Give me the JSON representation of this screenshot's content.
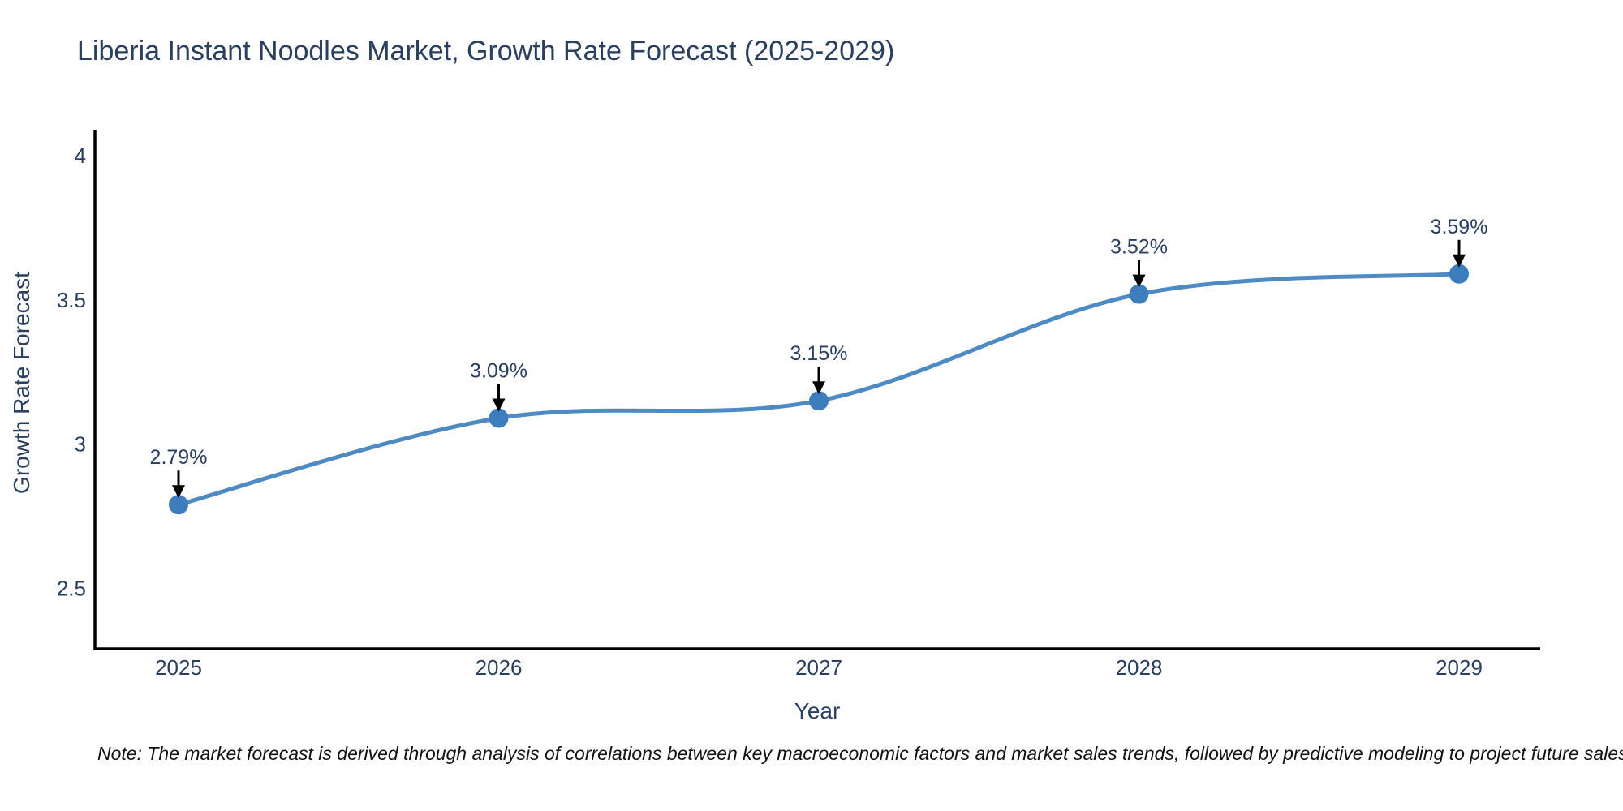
{
  "note": {
    "text": "Note: The market forecast is derived through analysis of correlations between key macroeconomic factors and market sales trends, followed by predictive modeling to project future sales"
  },
  "colors": {
    "line": "#4e8ac4",
    "marker": "#3d7dbd",
    "axis": "#000000",
    "text": "#2a3f5f",
    "annotation_text": "#2a3f5f",
    "annotation_arrow": "#000000",
    "note_text": "#111111",
    "background": "#ffffff"
  },
  "chart_data": {
    "type": "line",
    "title": "Liberia Instant Noodles Market, Growth Rate Forecast (2025-2029)",
    "xlabel": "Year",
    "ylabel": "Growth Rate Forecast",
    "x": [
      2025,
      2026,
      2027,
      2028,
      2029
    ],
    "x_tick_labels": [
      "2025",
      "2026",
      "2027",
      "2028",
      "2029"
    ],
    "y": [
      2.79,
      3.09,
      3.15,
      3.52,
      3.59
    ],
    "point_labels": [
      "2.79%",
      "3.09%",
      "3.15%",
      "3.52%",
      "3.59%"
    ],
    "y_ticks": [
      2.5,
      3,
      3.5,
      4
    ],
    "y_tick_labels": [
      "2.5",
      "3",
      "3.5",
      "4"
    ],
    "ylim": [
      2.29,
      4.09
    ],
    "grid": false,
    "legend": "none",
    "line_shape": "spline",
    "annotations": "each point labeled with value and black down arrow"
  }
}
